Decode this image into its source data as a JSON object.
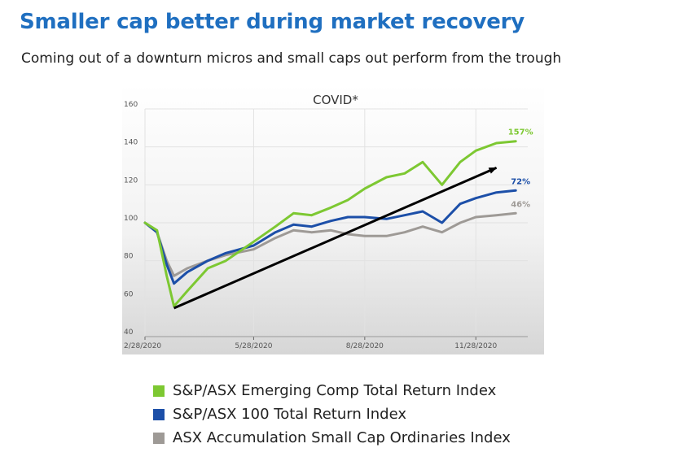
{
  "title": "Smaller cap better during market recovery",
  "subtitle": "Coming out of a downturn micros and small caps out perform from the trough",
  "colors": {
    "emerging": "#7dc832",
    "asx100": "#1c4fa8",
    "smallcap": "#9e9a96",
    "arrow": "#000000"
  },
  "chart_data": {
    "type": "line",
    "title": "COVID*",
    "xlabel": "",
    "ylabel": "",
    "ylim": [
      40,
      160
    ],
    "yticks": [
      40,
      60,
      80,
      100,
      120,
      140,
      160
    ],
    "xticks": [
      "2/28/2020",
      "5/28/2020",
      "8/28/2020",
      "11/28/2020"
    ],
    "grid": true,
    "legend_position": "bottom",
    "x": [
      "2/28/2020",
      "3/9/2020",
      "3/17/2020",
      "3/23/2020",
      "4/3/2020",
      "4/20/2020",
      "5/5/2020",
      "5/28/2020",
      "6/15/2020",
      "6/30/2020",
      "7/15/2020",
      "7/31/2020",
      "8/14/2020",
      "8/28/2020",
      "9/15/2020",
      "9/30/2020",
      "10/15/2020",
      "10/31/2020",
      "11/15/2020",
      "11/28/2020",
      "12/15/2020",
      "12/31/2020"
    ],
    "series": [
      {
        "name": "S&P/ASX Emerging Comp Total Return Index",
        "color_key": "emerging",
        "end_label": "157%",
        "values": [
          100,
          96,
          72,
          56,
          64,
          76,
          80,
          90,
          98,
          105,
          104,
          108,
          112,
          118,
          124,
          126,
          132,
          120,
          132,
          138,
          142,
          143
        ]
      },
      {
        "name": "S&P/ASX 100 Total Return Index",
        "color_key": "asx100",
        "end_label": "72%",
        "values": [
          100,
          95,
          78,
          68,
          74,
          80,
          84,
          88,
          95,
          99,
          98,
          101,
          103,
          103,
          102,
          104,
          106,
          100,
          110,
          113,
          116,
          117
        ]
      },
      {
        "name": "ASX Accumulation Small Cap Ordinaries Index",
        "color_key": "smallcap",
        "end_label": "46%",
        "values": [
          100,
          95,
          80,
          72,
          76,
          80,
          83,
          86,
          92,
          96,
          95,
          96,
          94,
          93,
          93,
          95,
          98,
          95,
          100,
          103,
          104,
          105
        ]
      }
    ],
    "annotations": [
      {
        "type": "arrow",
        "from": [
          "3/23/2020",
          55
        ],
        "to": [
          "12/15/2020",
          129
        ]
      }
    ]
  }
}
